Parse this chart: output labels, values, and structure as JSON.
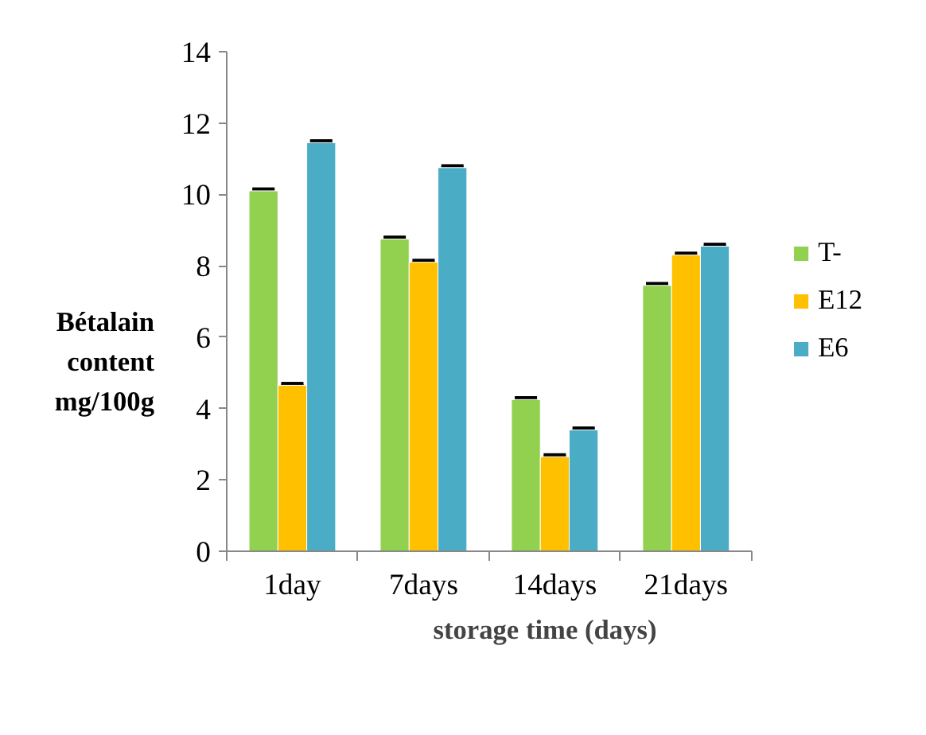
{
  "chart_data": {
    "type": "bar",
    "xlabel": "storage time (days)",
    "ylabel": "Bétalain content mg/100g",
    "categories": [
      "1day",
      "7days",
      "14days",
      "21days"
    ],
    "series": [
      {
        "name": "T-",
        "color": "#92d050",
        "values": [
          10.1,
          8.75,
          4.25,
          7.45
        ],
        "errors": [
          0.03,
          0.03,
          0.03,
          0.03
        ]
      },
      {
        "name": "E12",
        "color": "#ffc000",
        "values": [
          4.65,
          8.1,
          2.65,
          8.3
        ],
        "errors": [
          0.03,
          0.03,
          0.03,
          0.03
        ]
      },
      {
        "name": "E6",
        "color": "#4bacc6",
        "values": [
          11.45,
          10.75,
          3.4,
          8.55
        ],
        "errors": [
          0.03,
          0.03,
          0.03,
          0.03
        ]
      }
    ],
    "ylim": [
      0,
      14
    ],
    "yticks": [
      0,
      2,
      4,
      6,
      8,
      10,
      12,
      14
    ],
    "grid": false,
    "legend": "right"
  }
}
